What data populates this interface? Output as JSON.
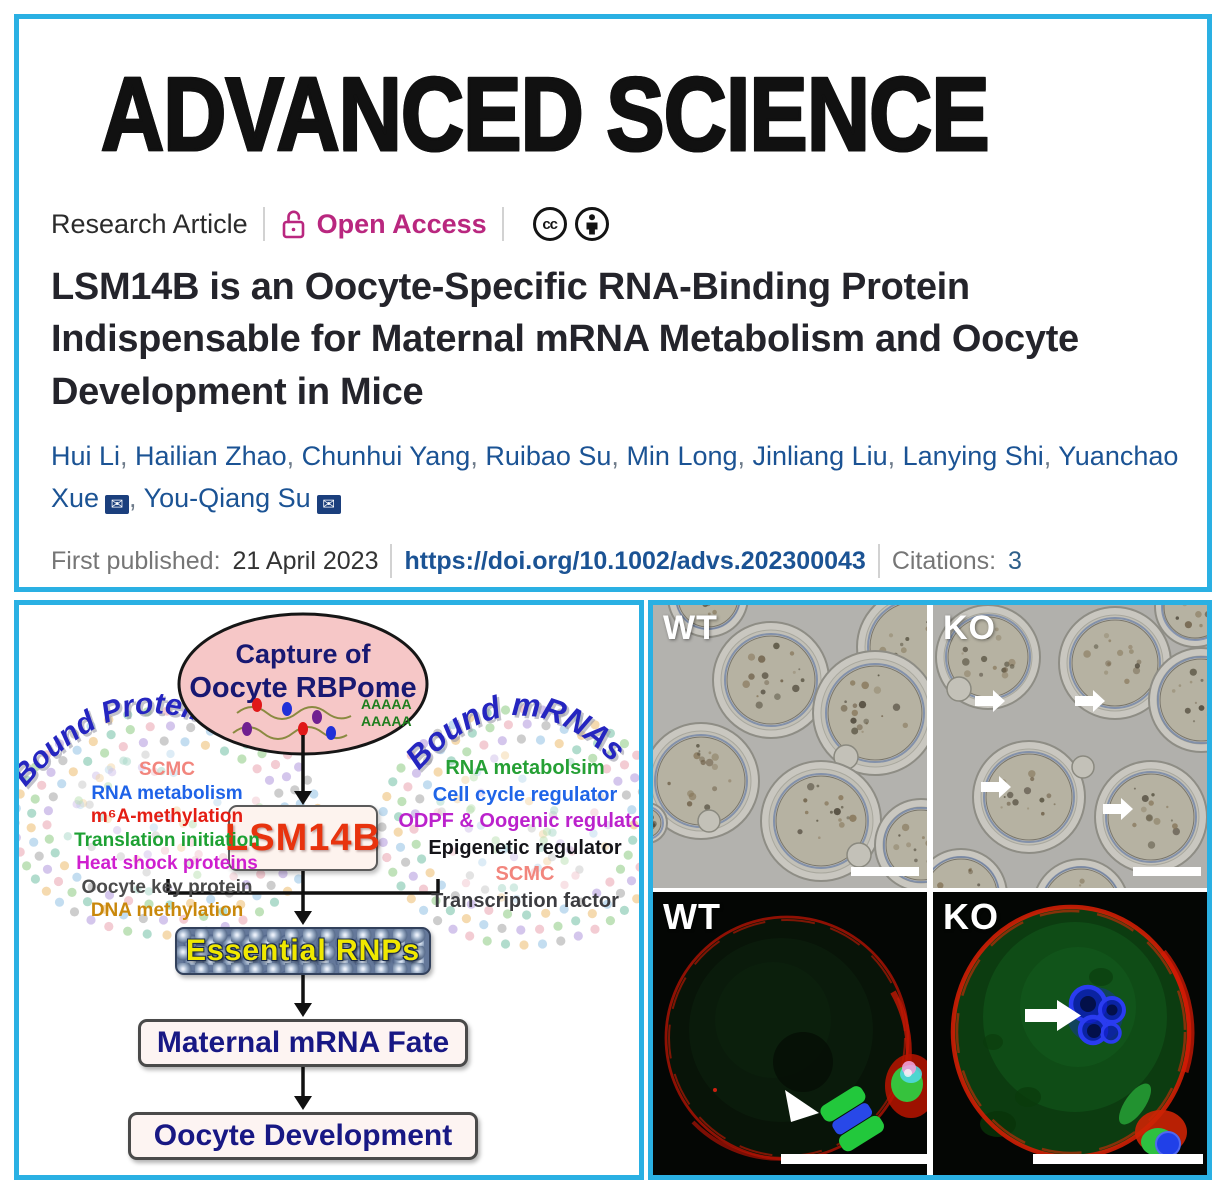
{
  "header": {
    "logo": "ADVANCED SCIENCE",
    "article_type": "Research Article",
    "open_access_label": "Open Access",
    "cc_icon_label": "cc",
    "email_icon_glyph": "✉"
  },
  "article": {
    "title": "LSM14B is an Oocyte-Specific RNA-Binding Protein Indispensable for Maternal mRNA Metabolism and Oocyte Development in Mice",
    "authors": [
      {
        "name": "Hui Li"
      },
      {
        "name": "Hailian Zhao"
      },
      {
        "name": "Chunhui Yang"
      },
      {
        "name": "Ruibao Su"
      },
      {
        "name": "Min Long"
      },
      {
        "name": "Jinliang Liu"
      },
      {
        "name": "Lanying Shi"
      },
      {
        "name": "Yuanchao Xue",
        "email": true
      },
      {
        "name": "You-Qiang Su",
        "email": true,
        "last": true
      }
    ],
    "first_published_label": "First published:",
    "first_published_date": "21 April 2023",
    "separator": "|",
    "doi": "https://doi.org/10.1002/advs.202300043",
    "citations_label": "Citations:",
    "citations_count": "3"
  },
  "diagram": {
    "capture_line1": "Capture of",
    "capture_line2": "Oocyte RBPome",
    "polya": "AAAAA",
    "left_cloud": {
      "title": "Bound Proteins",
      "items": [
        {
          "label": "SCMC",
          "color": "#f2857d"
        },
        {
          "label": "RNA metabolism",
          "color": "#1f63e8"
        },
        {
          "label": "m⁶A-methylation",
          "color": "#e41e14"
        },
        {
          "label": "Translation initiation",
          "color": "#1da133"
        },
        {
          "label": "Heat shock proteins",
          "color": "#cf1fcf"
        },
        {
          "label": "Oocyte key protein",
          "color": "#4b4b4b"
        },
        {
          "label": "DNA methylation",
          "color": "#c9880b"
        }
      ]
    },
    "right_cloud": {
      "title": "Bound mRNAs",
      "items": [
        {
          "label": "RNA metabolsim",
          "color": "#26a035"
        },
        {
          "label": "Cell cycle regulator",
          "color": "#2065e8"
        },
        {
          "label": "ODPF & Oogenic regulator",
          "color": "#bb22cc"
        },
        {
          "label": "Epigenetic regulator",
          "color": "#15151a"
        },
        {
          "label": "SCMC",
          "color": "#f2857d"
        },
        {
          "label": "Transcription factor",
          "color": "#3c3c40"
        }
      ]
    },
    "flow": {
      "protein": "LSM14B",
      "rnps": "Essential RNPs",
      "fate": "Maternal mRNA Fate",
      "dev": "Oocyte Development"
    }
  },
  "micrographs": {
    "brightfield": {
      "wt_label": "WT",
      "ko_label": "KO"
    },
    "fluorescence": {
      "wt_label": "WT",
      "ko_label": "KO"
    }
  },
  "colors": {
    "accent_cyan": "#2ab0e3",
    "open_access_magenta": "#b9277f",
    "author_blue": "#1b5394",
    "lsm14b_red": "#e8330e"
  }
}
